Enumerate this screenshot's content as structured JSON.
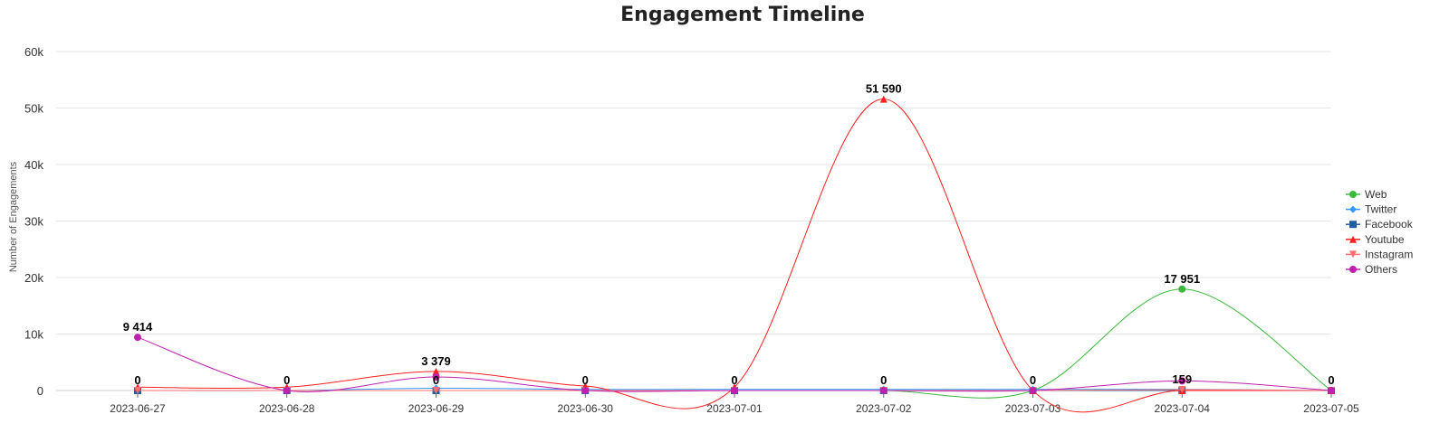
{
  "chart_data": {
    "type": "line",
    "title": "Engagement Timeline",
    "ylabel": "Number of Engagements",
    "xlabel": "",
    "ylim": [
      0,
      60000
    ],
    "yticks": [
      "0",
      "10k",
      "20k",
      "30k",
      "40k",
      "50k",
      "60k"
    ],
    "categories": [
      "2023-06-27",
      "2023-06-28",
      "2023-06-29",
      "2023-06-30",
      "2023-07-01",
      "2023-07-02",
      "2023-07-03",
      "2023-07-04",
      "2023-07-05"
    ],
    "grid": true,
    "legend": "right",
    "series": [
      {
        "name": "Web",
        "color": "#3cb93c",
        "marker": "circle",
        "values": [
          0,
          0,
          0,
          0,
          0,
          0,
          0,
          17951,
          0
        ]
      },
      {
        "name": "Twitter",
        "color": "#3399ff",
        "marker": "diamond",
        "values": [
          0,
          0,
          400,
          200,
          200,
          200,
          200,
          200,
          0
        ]
      },
      {
        "name": "Facebook",
        "color": "#1f5fa0",
        "marker": "square",
        "values": [
          0,
          0,
          0,
          0,
          0,
          0,
          0,
          0,
          0
        ]
      },
      {
        "name": "Youtube",
        "color": "#ff2020",
        "marker": "triangle",
        "values": [
          600,
          600,
          3379,
          800,
          600,
          51590,
          0,
          0,
          0
        ]
      },
      {
        "name": "Instagram",
        "color": "#ff6f6f",
        "marker": "triangle-down",
        "values": [
          0,
          0,
          0,
          0,
          0,
          0,
          0,
          159,
          0
        ]
      },
      {
        "name": "Others",
        "color": "#c020b0",
        "marker": "circle",
        "values": [
          9414,
          0,
          2400,
          0,
          0,
          0,
          0,
          1700,
          0
        ]
      }
    ],
    "data_labels": [
      {
        "category": "2023-06-27",
        "text": "9 414",
        "value": 9414
      },
      {
        "category": "2023-06-27",
        "text": "0",
        "value": 0
      },
      {
        "category": "2023-06-28",
        "text": "0",
        "value": 0
      },
      {
        "category": "2023-06-29",
        "text": "3 379",
        "value": 3379
      },
      {
        "category": "2023-06-29",
        "text": "0",
        "value": 0
      },
      {
        "category": "2023-06-30",
        "text": "0",
        "value": 0
      },
      {
        "category": "2023-07-01",
        "text": "0",
        "value": 0
      },
      {
        "category": "2023-07-02",
        "text": "51 590",
        "value": 51590
      },
      {
        "category": "2023-07-02",
        "text": "0",
        "value": 0
      },
      {
        "category": "2023-07-03",
        "text": "0",
        "value": 0
      },
      {
        "category": "2023-07-04",
        "text": "17 951",
        "value": 17951
      },
      {
        "category": "2023-07-04",
        "text": "159",
        "value": 159
      },
      {
        "category": "2023-07-05",
        "text": "0",
        "value": 0
      }
    ]
  }
}
